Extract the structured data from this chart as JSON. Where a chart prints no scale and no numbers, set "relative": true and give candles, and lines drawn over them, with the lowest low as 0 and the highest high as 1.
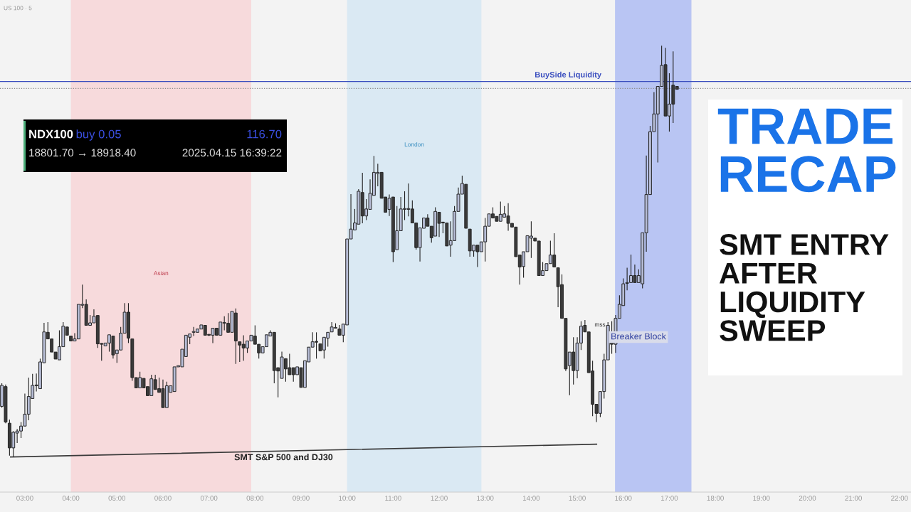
{
  "chart_data": {
    "type": "candlestick",
    "title": "TRADE RECAP",
    "subtitle": "SMT ENTRY AFTER LIQUIDITY SWEEP",
    "relative": true,
    "tick_labels": "x",
    "grid": false,
    "legend": false,
    "x": [
      2.5,
      2.583,
      2.667,
      2.75,
      2.833,
      2.917,
      3,
      3.083,
      3.167,
      3.25,
      3.333,
      3.417,
      3.5,
      3.583,
      3.667,
      3.75,
      3.833,
      3.917,
      4,
      4.083,
      4.167,
      4.25,
      4.333,
      4.417,
      4.5,
      4.583,
      4.667,
      4.75,
      4.833,
      4.917,
      5,
      5.083,
      5.167,
      5.25,
      5.333,
      5.417,
      5.5,
      5.583,
      5.667,
      5.75,
      5.833,
      5.917,
      6,
      6.083,
      6.167,
      6.25,
      6.333,
      6.417,
      6.5,
      6.583,
      6.667,
      6.75,
      6.833,
      6.917,
      7,
      7.083,
      7.167,
      7.25,
      7.333,
      7.417,
      7.5,
      7.583,
      7.667,
      7.75,
      7.833,
      7.917,
      8,
      8.083,
      8.167,
      8.25,
      8.333,
      8.417,
      8.5,
      8.583,
      8.667,
      8.75,
      8.833,
      8.917,
      9,
      9.083,
      9.167,
      9.25,
      9.333,
      9.417,
      9.5,
      9.583,
      9.667,
      9.75,
      9.833,
      9.917,
      10,
      10.083,
      10.167,
      10.25,
      10.333,
      10.417,
      10.5,
      10.583,
      10.667,
      10.75,
      10.833,
      10.917,
      11,
      11.083,
      11.167,
      11.25,
      11.333,
      11.417,
      11.5,
      11.583,
      11.667,
      11.75,
      11.833,
      11.917,
      12,
      12.083,
      12.167,
      12.25,
      12.333,
      12.417,
      12.5,
      12.583,
      12.667,
      12.75,
      12.833,
      12.917,
      13,
      13.083,
      13.167,
      13.25,
      13.333,
      13.417,
      13.5,
      13.583,
      13.667,
      13.75,
      13.833,
      13.917,
      14,
      14.083,
      14.167,
      14.25,
      14.333,
      14.417,
      14.5,
      14.583,
      14.667,
      14.75,
      14.833,
      14.917,
      15,
      15.083,
      15.167,
      15.25,
      15.333,
      15.417,
      15.5,
      15.583,
      15.667,
      15.75,
      15.833,
      15.917,
      16,
      16.083,
      16.167,
      16.25,
      16.333,
      16.417,
      16.5,
      16.583,
      16.667,
      16.75,
      16.833,
      16.917,
      17,
      17.083,
      17.167
    ],
    "ohlc": [
      [
        0.123,
        0.179,
        0.12,
        0.174
      ],
      [
        0.171,
        0.176,
        0.082,
        0.085
      ],
      [
        0.082,
        0.091,
        0.003,
        0.022
      ],
      [
        0.022,
        0.063,
        0,
        0.06
      ],
      [
        0.058,
        0.068,
        0.034,
        0.063
      ],
      [
        0.063,
        0.085,
        0.046,
        0.075
      ],
      [
        0.075,
        0.154,
        0.075,
        0.104
      ],
      [
        0.104,
        0.193,
        0.089,
        0.147
      ],
      [
        0.142,
        0.202,
        0.142,
        0.174
      ],
      [
        0.173,
        0.203,
        0.159,
        0.174
      ],
      [
        0.166,
        0.239,
        0.166,
        0.231
      ],
      [
        0.229,
        0.326,
        0.229,
        0.304
      ],
      [
        0.303,
        0.328,
        0.287,
        0.287
      ],
      [
        0.287,
        0.287,
        0.255,
        0.255
      ],
      [
        0.255,
        0.255,
        0.238,
        0.238
      ],
      [
        0.236,
        0.308,
        0.236,
        0.268
      ],
      [
        0.268,
        0.328,
        0.268,
        0.318
      ],
      [
        0.316,
        0.316,
        0.296,
        0.296
      ],
      [
        0.294,
        0.294,
        0.282,
        0.282
      ],
      [
        0.282,
        0.301,
        0.282,
        0.287
      ],
      [
        0.287,
        0.371,
        0.287,
        0.371
      ],
      [
        0.369,
        0.419,
        0.362,
        0.371
      ],
      [
        0.371,
        0.383,
        0.32,
        0.32
      ],
      [
        0.32,
        0.345,
        0.32,
        0.326
      ],
      [
        0.326,
        0.359,
        0.326,
        0.342
      ],
      [
        0.344,
        0.344,
        0.265,
        0.275
      ],
      [
        0.275,
        0.277,
        0.234,
        0.274
      ],
      [
        0.27,
        0.277,
        0.27,
        0.277
      ],
      [
        0.277,
        0.297,
        0.256,
        0.297
      ],
      [
        0.294,
        0.294,
        0.239,
        0.248
      ],
      [
        0.251,
        0.26,
        0.229,
        0.26
      ],
      [
        0.26,
        0.316,
        0.26,
        0.301
      ],
      [
        0.301,
        0.374,
        0.301,
        0.352
      ],
      [
        0.352,
        0.374,
        0.277,
        0.289
      ],
      [
        0.287,
        0.287,
        0.185,
        0.193
      ],
      [
        0.193,
        0.193,
        0.168,
        0.168
      ],
      [
        0.168,
        0.207,
        0.168,
        0.193
      ],
      [
        0.191,
        0.191,
        0.168,
        0.168
      ],
      [
        0.171,
        0.171,
        0.149,
        0.149
      ],
      [
        0.149,
        0.2,
        0.149,
        0.19
      ],
      [
        0.188,
        0.2,
        0.164,
        0.164
      ],
      [
        0.166,
        0.193,
        0.157,
        0.157
      ],
      [
        0.166,
        0.188,
        0.12,
        0.12
      ],
      [
        0.12,
        0.183,
        0.12,
        0.173
      ],
      [
        0.157,
        0.173,
        0.157,
        0.173
      ],
      [
        0.159,
        0.219,
        0.159,
        0.219
      ],
      [
        0.219,
        0.222,
        0.219,
        0.222
      ],
      [
        0.219,
        0.262,
        0.219,
        0.262
      ],
      [
        0.244,
        0.296,
        0.244,
        0.296
      ],
      [
        0.291,
        0.299,
        0.274,
        0.299
      ],
      [
        0.303,
        0.316,
        0.294,
        0.304
      ],
      [
        0.303,
        0.311,
        0.303,
        0.311
      ],
      [
        0.311,
        0.321,
        0.311,
        0.321
      ],
      [
        0.32,
        0.32,
        0.296,
        0.296
      ],
      [
        0.297,
        0.299,
        0.294,
        0.296
      ],
      [
        0.296,
        0.313,
        0.277,
        0.313
      ],
      [
        0.313,
        0.313,
        0.296,
        0.296
      ],
      [
        0.296,
        0.328,
        0.296,
        0.328
      ],
      [
        0.325,
        0.342,
        0.308,
        0.326
      ],
      [
        0.325,
        0.35,
        0.303,
        0.303
      ],
      [
        0.303,
        0.354,
        0.303,
        0.354
      ],
      [
        0.35,
        0.361,
        0.226,
        0.282
      ],
      [
        0.28,
        0.28,
        0.231,
        0.272
      ],
      [
        0.274,
        0.296,
        0.234,
        0.265
      ],
      [
        0.265,
        0.282,
        0.253,
        0.282
      ],
      [
        0.282,
        0.296,
        0.282,
        0.296
      ],
      [
        0.294,
        0.32,
        0.274,
        0.274
      ],
      [
        0.274,
        0.274,
        0.239,
        0.253
      ],
      [
        0.253,
        0.268,
        0.253,
        0.268
      ],
      [
        0.268,
        0.297,
        0.268,
        0.297
      ],
      [
        0.294,
        0.308,
        0.294,
        0.303
      ],
      [
        0.303,
        0.303,
        0.179,
        0.21
      ],
      [
        0.217,
        0.217,
        0.145,
        0.209
      ],
      [
        0.191,
        0.256,
        0.191,
        0.243
      ],
      [
        0.239,
        0.239,
        0.183,
        0.214
      ],
      [
        0.217,
        0.251,
        0.2,
        0.2
      ],
      [
        0.217,
        0.217,
        0.183,
        0.2
      ],
      [
        0.2,
        0.219,
        0.2,
        0.219
      ],
      [
        0.217,
        0.217,
        0.169,
        0.169
      ],
      [
        0.169,
        0.234,
        0.169,
        0.234
      ],
      [
        0.231,
        0.267,
        0.231,
        0.267
      ],
      [
        0.267,
        0.303,
        0.267,
        0.28
      ],
      [
        0.28,
        0.303,
        0.239,
        0.279
      ],
      [
        0.275,
        0.275,
        0.258,
        0.258
      ],
      [
        0.26,
        0.291,
        0.239,
        0.291
      ],
      [
        0.289,
        0.303,
        0.268,
        0.303
      ],
      [
        0.304,
        0.328,
        0.304,
        0.316
      ],
      [
        0.313,
        0.325,
        0.313,
        0.315
      ],
      [
        0.311,
        0.321,
        0.296,
        0.296
      ],
      [
        0.296,
        0.323,
        0.279,
        0.323
      ],
      [
        0.321,
        0.53,
        0.321,
        0.53
      ],
      [
        0.53,
        0.639,
        0.53,
        0.554
      ],
      [
        0.552,
        0.603,
        0.552,
        0.569
      ],
      [
        0.566,
        0.651,
        0.566,
        0.646
      ],
      [
        0.643,
        0.691,
        0.568,
        0.586
      ],
      [
        0.586,
        0.627,
        0.576,
        0.603
      ],
      [
        0.602,
        0.675,
        0.602,
        0.641
      ],
      [
        0.636,
        0.732,
        0.636,
        0.692
      ],
      [
        0.689,
        0.713,
        0.658,
        0.692
      ],
      [
        0.692,
        0.692,
        0.629,
        0.629
      ],
      [
        0.632,
        0.632,
        0.595,
        0.595
      ],
      [
        0.602,
        0.638,
        0.586,
        0.629
      ],
      [
        0.632,
        0.632,
        0.474,
        0.499
      ],
      [
        0.504,
        0.61,
        0.504,
        0.55
      ],
      [
        0.55,
        0.632,
        0.55,
        0.603
      ],
      [
        0.602,
        0.646,
        0.576,
        0.603
      ],
      [
        0.602,
        0.665,
        0.585,
        0.603
      ],
      [
        0.603,
        0.624,
        0.569,
        0.569
      ],
      [
        0.569,
        0.569,
        0.504,
        0.509
      ],
      [
        0.509,
        0.557,
        0.475,
        0.557
      ],
      [
        0.556,
        0.581,
        0.556,
        0.581
      ],
      [
        0.581,
        0.59,
        0.561,
        0.561
      ],
      [
        0.561,
        0.561,
        0.521,
        0.533
      ],
      [
        0.537,
        0.607,
        0.537,
        0.597
      ],
      [
        0.595,
        0.595,
        0.535,
        0.568
      ],
      [
        0.571,
        0.571,
        0.544,
        0.569
      ],
      [
        0.569,
        0.569,
        0.513,
        0.513
      ],
      [
        0.515,
        0.573,
        0.487,
        0.526
      ],
      [
        0.526,
        0.61,
        0.526,
        0.597
      ],
      [
        0.597,
        0.655,
        0.597,
        0.639
      ],
      [
        0.639,
        0.684,
        0.639,
        0.665
      ],
      [
        0.663,
        0.663,
        0.556,
        0.556
      ],
      [
        0.554,
        0.554,
        0.487,
        0.501
      ],
      [
        0.501,
        0.515,
        0.487,
        0.515
      ],
      [
        0.515,
        0.515,
        0.462,
        0.499
      ],
      [
        0.499,
        0.523,
        0.499,
        0.523
      ],
      [
        0.523,
        0.581,
        0.475,
        0.561
      ],
      [
        0.561,
        0.591,
        0.561,
        0.591
      ],
      [
        0.591,
        0.607,
        0.581,
        0.581
      ],
      [
        0.585,
        0.585,
        0.573,
        0.573
      ],
      [
        0.573,
        0.621,
        0.573,
        0.59
      ],
      [
        0.583,
        0.61,
        0.583,
        0.591
      ],
      [
        0.586,
        0.617,
        0.55,
        0.568
      ],
      [
        0.568,
        0.568,
        0.559,
        0.559
      ],
      [
        0.559,
        0.559,
        0.487,
        0.487
      ],
      [
        0.491,
        0.491,
        0.419,
        0.462
      ],
      [
        0.463,
        0.499,
        0.436,
        0.499
      ],
      [
        0.499,
        0.538,
        0.499,
        0.538
      ],
      [
        0.532,
        0.573,
        0.484,
        0.537
      ],
      [
        0.532,
        0.532,
        0.525,
        0.525
      ],
      [
        0.525,
        0.525,
        0.441,
        0.441
      ],
      [
        0.441,
        0.474,
        0.441,
        0.453
      ],
      [
        0.453,
        0.47,
        0.453,
        0.47
      ],
      [
        0.47,
        0.526,
        0.47,
        0.491
      ],
      [
        0.491,
        0.544,
        0.462,
        0.462
      ],
      [
        0.46,
        0.46,
        0.364,
        0.414
      ],
      [
        0.419,
        0.444,
        0.337,
        0.337
      ],
      [
        0.337,
        0.337,
        0.209,
        0.214
      ],
      [
        0.222,
        0.255,
        0.15,
        0.255
      ],
      [
        0.255,
        0.291,
        0.176,
        0.21
      ],
      [
        0.21,
        0.291,
        0.191,
        0.277
      ],
      [
        0.277,
        0.33,
        0.26,
        0.318
      ],
      [
        0.32,
        0.333,
        0.304,
        0.304
      ],
      [
        0.304,
        0.304,
        0.205,
        0.205
      ],
      [
        0.209,
        0.234,
        0.099,
        0.128
      ],
      [
        0.128,
        0.128,
        0.085,
        0.106
      ],
      [
        0.106,
        0.159,
        0.097,
        0.159
      ],
      [
        0.159,
        0.251,
        0.142,
        0.236
      ],
      [
        0.236,
        0.328,
        0.236,
        0.32
      ],
      [
        0.303,
        0.33,
        0.251,
        0.274
      ],
      [
        0.274,
        0.345,
        0.253,
        0.337
      ],
      [
        0.337,
        0.393,
        0.337,
        0.371
      ],
      [
        0.368,
        0.434,
        0.368,
        0.421
      ],
      [
        0.422,
        0.46,
        0.405,
        0.424
      ],
      [
        0.424,
        0.492,
        0.424,
        0.441
      ],
      [
        0.441,
        0.468,
        0.424,
        0.424
      ],
      [
        0.424,
        0.456,
        0.424,
        0.441
      ],
      [
        0.421,
        0.545,
        0.41,
        0.545
      ],
      [
        0.545,
        0.733,
        0.499,
        0.638
      ],
      [
        0.638,
        0.805,
        0.638,
        0.791
      ],
      [
        0.791,
        0.887,
        0.791,
        0.834
      ],
      [
        0.834,
        0.901,
        0.716,
        0.901
      ],
      [
        0.901,
        1,
        0.901,
        0.952
      ],
      [
        0.954,
        0.995,
        0.829,
        0.829
      ],
      [
        0.829,
        0.933,
        0.791,
        0.858
      ],
      [
        0.904,
        0.986,
        0.812,
        0.858
      ],
      [
        0.901,
        0.901,
        0.894,
        0.894
      ]
    ],
    "xlim": [
      2.46,
      22.25
    ],
    "xticks": [
      {
        "value": 3,
        "label": "03:00"
      },
      {
        "value": 4,
        "label": "04:00"
      },
      {
        "value": 5,
        "label": "05:00"
      },
      {
        "value": 6,
        "label": "06:00"
      },
      {
        "value": 7,
        "label": "07:00"
      },
      {
        "value": 8,
        "label": "08:00"
      },
      {
        "value": 9,
        "label": "09:00"
      },
      {
        "value": 10,
        "label": "10:00"
      },
      {
        "value": 11,
        "label": "11:00"
      },
      {
        "value": 12,
        "label": "12:00"
      },
      {
        "value": 13,
        "label": "13:00"
      },
      {
        "value": 14,
        "label": "14:00"
      },
      {
        "value": 15,
        "label": "15:00"
      },
      {
        "value": 16,
        "label": "16:00"
      },
      {
        "value": 17,
        "label": "17:00"
      },
      {
        "value": 18,
        "label": "18:00"
      },
      {
        "value": 19,
        "label": "19:00"
      },
      {
        "value": 20,
        "label": "20:00"
      },
      {
        "value": 21,
        "label": "21:00"
      },
      {
        "value": 22,
        "label": "22:00"
      }
    ],
    "series": [
      {
        "type": "line",
        "x": [
          2.69,
          15.42
        ],
        "values": [
          0,
          0.031
        ],
        "color": "#3a3a3a"
      }
    ],
    "ref_lines": [
      {
        "axis": "y",
        "value": 0.913,
        "label": "BuySide Liquidity",
        "color": "#3b4fbf",
        "line_style": "solid"
      },
      {
        "axis": "y",
        "value": 0.896,
        "label": null,
        "color": "#8a8a8a",
        "line_style": "dotted"
      }
    ],
    "bands": [
      {
        "axis": "x",
        "from": 4.0,
        "to": 7.917,
        "label": "Asian",
        "color": "#f7d3d6"
      },
      {
        "axis": "x",
        "from": 10.0,
        "to": 12.917,
        "label": "London",
        "color": "#d3e6f3"
      },
      {
        "axis": "x",
        "from": 15.82,
        "to": 17.48,
        "label": null,
        "color": "#aab9f3"
      }
    ],
    "annotations": [
      "US 100 · 5",
      "NDX100",
      "buy 0.05",
      "116.70",
      "18801.70 → 18918.40",
      "2025.04.15 16:39:22",
      {
        "text": "SMT S&P 500 and DJ30",
        "x": 8.62,
        "y": 0.015
      },
      "mss",
      "Breaker Block"
    ]
  }
}
